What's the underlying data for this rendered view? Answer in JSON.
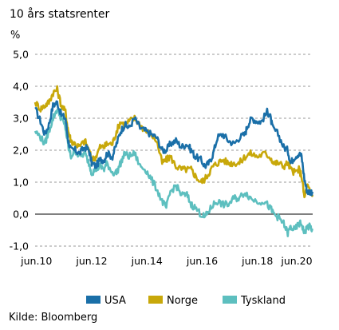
{
  "chart_data": {
    "type": "line",
    "title": "10 års statsrenter",
    "ylabel": "%",
    "xlabel": "",
    "source": "Kilde: Bloomberg",
    "ylim": [
      -1.0,
      5.0
    ],
    "yticks": [
      "5,0",
      "4,0",
      "3,0",
      "2,0",
      "1,0",
      "0,0",
      "-1,0"
    ],
    "ytick_values": [
      5.0,
      4.0,
      3.0,
      2.0,
      1.0,
      0.0,
      -1.0
    ],
    "xlim": [
      2010.4,
      2020.45
    ],
    "xticks": [
      "jun.10",
      "jun.12",
      "jun.14",
      "jun.16",
      "jun.18",
      "jun.20"
    ],
    "xtick_values": [
      2010.45,
      2012.45,
      2014.45,
      2016.45,
      2018.45,
      2020.45
    ],
    "grid": "horizontal-dashed",
    "legend": "bottom",
    "series": [
      {
        "name": "USA",
        "color": "#1a6fa8",
        "x": [
          2010.4,
          2010.6,
          2010.75,
          2010.9,
          2011.05,
          2011.2,
          2011.35,
          2011.5,
          2011.6,
          2011.7,
          2011.85,
          2012.0,
          2012.2,
          2012.35,
          2012.45,
          2012.6,
          2012.75,
          2012.9,
          2013.0,
          2013.2,
          2013.35,
          2013.5,
          2013.65,
          2013.8,
          2014.0,
          2014.2,
          2014.4,
          2014.6,
          2014.8,
          2015.0,
          2015.15,
          2015.3,
          2015.5,
          2015.7,
          2015.9,
          2016.05,
          2016.2,
          2016.4,
          2016.55,
          2016.7,
          2016.85,
          2017.0,
          2017.2,
          2017.4,
          2017.6,
          2017.8,
          2018.0,
          2018.1,
          2018.25,
          2018.45,
          2018.6,
          2018.8,
          2018.9,
          2019.0,
          2019.2,
          2019.4,
          2019.55,
          2019.65,
          2019.8,
          2019.95,
          2020.05,
          2020.15,
          2020.25,
          2020.35,
          2020.45
        ],
        "values": [
          3.3,
          2.9,
          2.5,
          2.8,
          3.4,
          3.5,
          3.1,
          3.0,
          2.3,
          2.0,
          2.0,
          1.9,
          2.1,
          2.0,
          1.6,
          1.5,
          1.7,
          1.7,
          1.9,
          1.8,
          2.2,
          2.6,
          2.8,
          2.7,
          3.0,
          2.7,
          2.6,
          2.5,
          2.4,
          2.0,
          2.0,
          2.2,
          2.3,
          2.1,
          2.2,
          2.0,
          1.8,
          1.7,
          1.5,
          1.6,
          1.9,
          2.4,
          2.5,
          2.3,
          2.2,
          2.4,
          2.5,
          2.8,
          3.0,
          2.9,
          2.9,
          3.2,
          3.1,
          2.7,
          2.5,
          2.1,
          2.0,
          1.6,
          1.8,
          1.9,
          1.8,
          1.1,
          0.7,
          0.7,
          0.7
        ]
      },
      {
        "name": "Norge",
        "color": "#c8a80a",
        "x": [
          2010.4,
          2010.6,
          2010.75,
          2010.9,
          2011.05,
          2011.2,
          2011.35,
          2011.5,
          2011.6,
          2011.7,
          2011.85,
          2012.0,
          2012.2,
          2012.35,
          2012.45,
          2012.6,
          2012.75,
          2012.9,
          2013.0,
          2013.2,
          2013.35,
          2013.5,
          2013.65,
          2013.8,
          2014.0,
          2014.2,
          2014.4,
          2014.6,
          2014.8,
          2015.0,
          2015.15,
          2015.3,
          2015.5,
          2015.7,
          2015.9,
          2016.05,
          2016.2,
          2016.4,
          2016.55,
          2016.7,
          2016.85,
          2017.0,
          2017.2,
          2017.4,
          2017.6,
          2017.8,
          2018.0,
          2018.2,
          2018.45,
          2018.7,
          2018.9,
          2019.05,
          2019.2,
          2019.4,
          2019.55,
          2019.65,
          2019.8,
          2019.95,
          2020.05,
          2020.15,
          2020.25,
          2020.35,
          2020.45
        ],
        "values": [
          3.5,
          3.3,
          3.4,
          3.5,
          3.8,
          3.9,
          3.4,
          3.2,
          2.6,
          2.3,
          2.2,
          2.1,
          2.3,
          2.0,
          1.7,
          1.8,
          2.1,
          2.1,
          2.2,
          2.2,
          2.6,
          2.9,
          2.8,
          2.9,
          3.0,
          2.8,
          2.6,
          2.5,
          2.3,
          1.6,
          1.7,
          1.8,
          1.5,
          1.4,
          1.4,
          1.4,
          1.2,
          1.0,
          1.1,
          1.3,
          1.5,
          1.6,
          1.7,
          1.6,
          1.6,
          1.6,
          1.8,
          1.9,
          1.8,
          1.9,
          1.8,
          1.6,
          1.6,
          1.5,
          1.6,
          1.4,
          1.3,
          1.4,
          1.2,
          0.5,
          0.9,
          0.7,
          0.6
        ]
      },
      {
        "name": "Tyskland",
        "color": "#5dbfbf",
        "x": [
          2010.4,
          2010.6,
          2010.75,
          2010.9,
          2011.05,
          2011.2,
          2011.35,
          2011.5,
          2011.6,
          2011.7,
          2011.85,
          2012.0,
          2012.2,
          2012.35,
          2012.45,
          2012.6,
          2012.75,
          2012.9,
          2013.0,
          2013.2,
          2013.35,
          2013.5,
          2013.65,
          2013.8,
          2014.0,
          2014.2,
          2014.4,
          2014.6,
          2014.8,
          2015.0,
          2015.15,
          2015.3,
          2015.5,
          2015.7,
          2015.9,
          2016.05,
          2016.2,
          2016.4,
          2016.55,
          2016.7,
          2016.85,
          2017.0,
          2017.2,
          2017.4,
          2017.6,
          2017.8,
          2018.0,
          2018.2,
          2018.45,
          2018.7,
          2018.9,
          2019.05,
          2019.2,
          2019.4,
          2019.55,
          2019.65,
          2019.8,
          2019.95,
          2020.05,
          2020.15,
          2020.25,
          2020.35,
          2020.45
        ],
        "values": [
          2.6,
          2.4,
          2.2,
          2.6,
          3.0,
          3.3,
          3.0,
          2.7,
          2.1,
          1.8,
          2.0,
          1.8,
          1.9,
          1.6,
          1.3,
          1.4,
          1.5,
          1.4,
          1.6,
          1.3,
          1.3,
          1.6,
          1.9,
          1.8,
          1.9,
          1.5,
          1.4,
          1.1,
          0.8,
          0.4,
          0.2,
          0.7,
          0.9,
          0.6,
          0.6,
          0.3,
          0.2,
          0.0,
          -0.1,
          0.1,
          0.3,
          0.4,
          0.3,
          0.3,
          0.5,
          0.5,
          0.7,
          0.5,
          0.4,
          0.4,
          0.2,
          0.0,
          -0.1,
          -0.3,
          -0.6,
          -0.4,
          -0.5,
          -0.3,
          -0.3,
          -0.6,
          -0.4,
          -0.4,
          -0.5
        ]
      }
    ]
  }
}
